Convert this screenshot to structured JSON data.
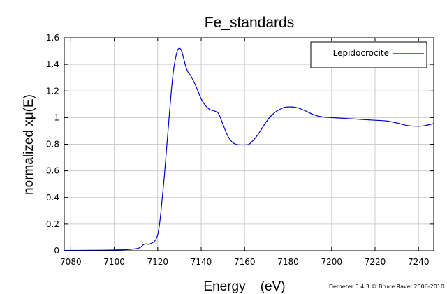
{
  "chart_data": {
    "type": "line",
    "title": "Fe_standards",
    "xlabel": "Energy    (eV)",
    "ylabel": "normalized xμ(E)",
    "xlim": [
      7077,
      7247
    ],
    "ylim": [
      0,
      1.6
    ],
    "xticks": [
      7080,
      7100,
      7120,
      7140,
      7160,
      7180,
      7200,
      7220,
      7240
    ],
    "yticks": [
      0,
      0.2,
      0.4,
      0.6,
      0.8,
      1,
      1.2,
      1.4,
      1.6
    ],
    "grid": true,
    "legend_position": "top-right",
    "series": [
      {
        "name": "Lepidocrocite",
        "color": "#0000cc",
        "x": [
          7077,
          7085,
          7095,
          7105,
          7110,
          7112,
          7113,
          7114,
          7115,
          7116,
          7117,
          7118,
          7119,
          7120,
          7121,
          7122,
          7123,
          7124,
          7125,
          7126,
          7127,
          7128,
          7129,
          7130,
          7131,
          7132,
          7133,
          7134,
          7135,
          7136,
          7138,
          7140,
          7142,
          7144,
          7146,
          7148,
          7150,
          7152,
          7154,
          7156,
          7158,
          7160,
          7162,
          7164,
          7166,
          7168,
          7170,
          7172,
          7174,
          7176,
          7178,
          7180,
          7182,
          7185,
          7188,
          7192,
          7196,
          7200,
          7205,
          7210,
          7215,
          7220,
          7225,
          7230,
          7235,
          7240,
          7243,
          7247
        ],
        "y": [
          0.002,
          0.003,
          0.004,
          0.008,
          0.015,
          0.025,
          0.04,
          0.05,
          0.05,
          0.048,
          0.055,
          0.065,
          0.08,
          0.12,
          0.22,
          0.38,
          0.55,
          0.75,
          0.95,
          1.15,
          1.32,
          1.43,
          1.5,
          1.52,
          1.5,
          1.44,
          1.38,
          1.34,
          1.32,
          1.29,
          1.22,
          1.14,
          1.09,
          1.06,
          1.05,
          1.03,
          0.95,
          0.87,
          0.82,
          0.8,
          0.795,
          0.795,
          0.8,
          0.83,
          0.87,
          0.92,
          0.97,
          1.01,
          1.04,
          1.06,
          1.075,
          1.08,
          1.08,
          1.07,
          1.05,
          1.02,
          1.005,
          1.0,
          0.995,
          0.99,
          0.985,
          0.98,
          0.975,
          0.96,
          0.94,
          0.935,
          0.94,
          0.955
        ]
      }
    ]
  },
  "credit": "Demeter 0.4.3 © Bruce Ravel 2006-2010"
}
